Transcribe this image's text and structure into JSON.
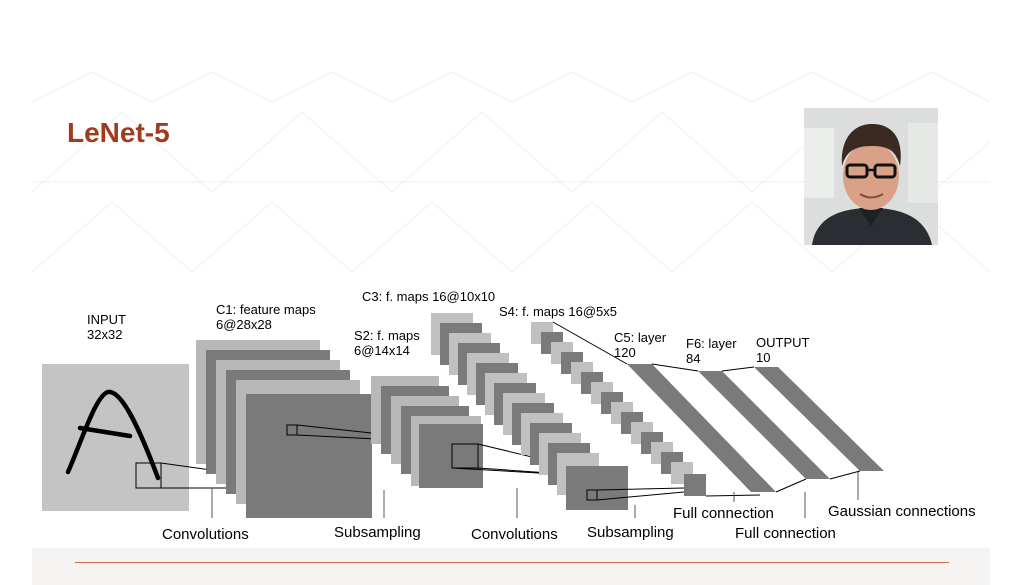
{
  "slide": {
    "title": "LeNet-5",
    "accent_color": "#a23b1e",
    "rule_color": "#c9694a"
  },
  "portrait": {
    "icon": "person-portrait-photo"
  },
  "diagram": {
    "input": {
      "line1": "INPUT",
      "line2": "32x32"
    },
    "c1": {
      "line1": "C1: feature maps",
      "line2": "6@28x28"
    },
    "s2": {
      "line1": "S2: f. maps",
      "line2": "6@14x14"
    },
    "c3": {
      "line1": "C3: f. maps 16@10x10"
    },
    "s4": {
      "line1": "S4: f. maps 16@5x5"
    },
    "c5": {
      "line1": "C5: layer",
      "line2": "120"
    },
    "f6": {
      "line1": "F6: layer",
      "line2": "84"
    },
    "output": {
      "line1": "OUTPUT",
      "line2": "10"
    },
    "captions": {
      "convolutions_1": "Convolutions",
      "subsampling_1": "Subsampling",
      "convolutions_2": "Convolutions",
      "subsampling_2": "Subsampling",
      "full_connection_1": "Full connection",
      "full_connection_2": "Full connection",
      "gaussian": "Gaussian connections"
    }
  }
}
